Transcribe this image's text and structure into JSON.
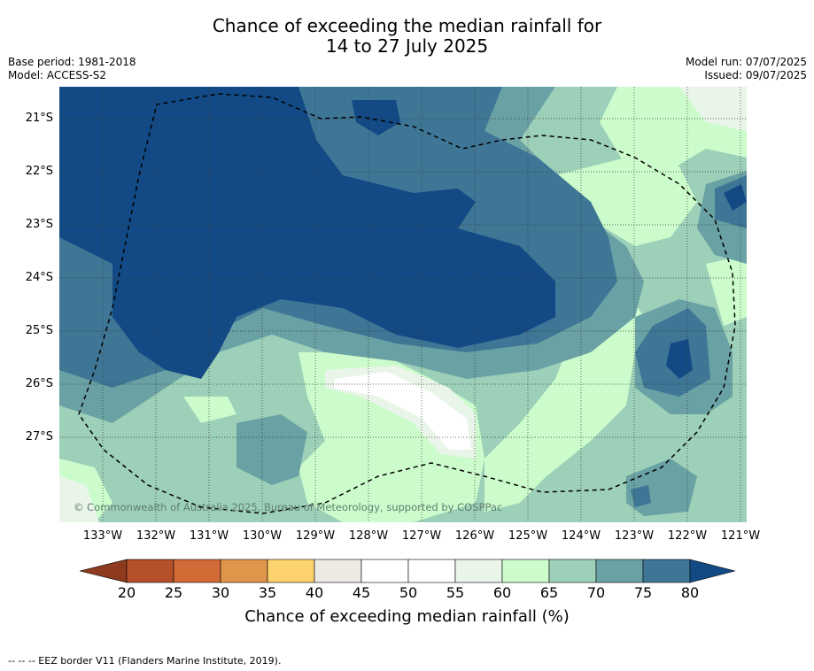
{
  "title": {
    "line1": "Chance of exceeding the median rainfall for",
    "line2": "14 to 27 July 2025"
  },
  "meta_left": {
    "base_period": "Base period: 1981-2018",
    "model": "Model: ACCESS-S2"
  },
  "meta_right": {
    "model_run": "Model run: 07/07/2025",
    "issued": "Issued: 09/07/2025"
  },
  "map": {
    "lat_labels": [
      "21°S",
      "22°S",
      "23°S",
      "24°S",
      "25°S",
      "26°S",
      "27°S"
    ],
    "lon_labels": [
      "133°W",
      "132°W",
      "131°W",
      "130°W",
      "129°W",
      "128°W",
      "127°W",
      "126°W",
      "125°W",
      "124°W",
      "123°W",
      "122°W",
      "121°W"
    ],
    "copyright": "© Commonwealth of Australia 2025, Bureau of Meteorology, supported by COSPPac"
  },
  "colorbar": {
    "ticks": [
      "20",
      "25",
      "30",
      "35",
      "40",
      "45",
      "50",
      "55",
      "60",
      "65",
      "70",
      "75",
      "80"
    ],
    "colors": [
      "#b5502a",
      "#d36b36",
      "#e0964a",
      "#fdd36e",
      "#ede9e3",
      "#ffffff",
      "#ffffff",
      "#eaf5ea",
      "#ccfccc",
      "#9dd0b8",
      "#6aa1a4",
      "#3f7696"
    ],
    "under_color": "#8e3a1f",
    "over_color": "#134a85",
    "title": "Chance of exceeding median rainfall (%)"
  },
  "footer": {
    "legend_text": "--  --  -- EEZ border V11 (Flanders Marine Institute, 2019)."
  }
}
